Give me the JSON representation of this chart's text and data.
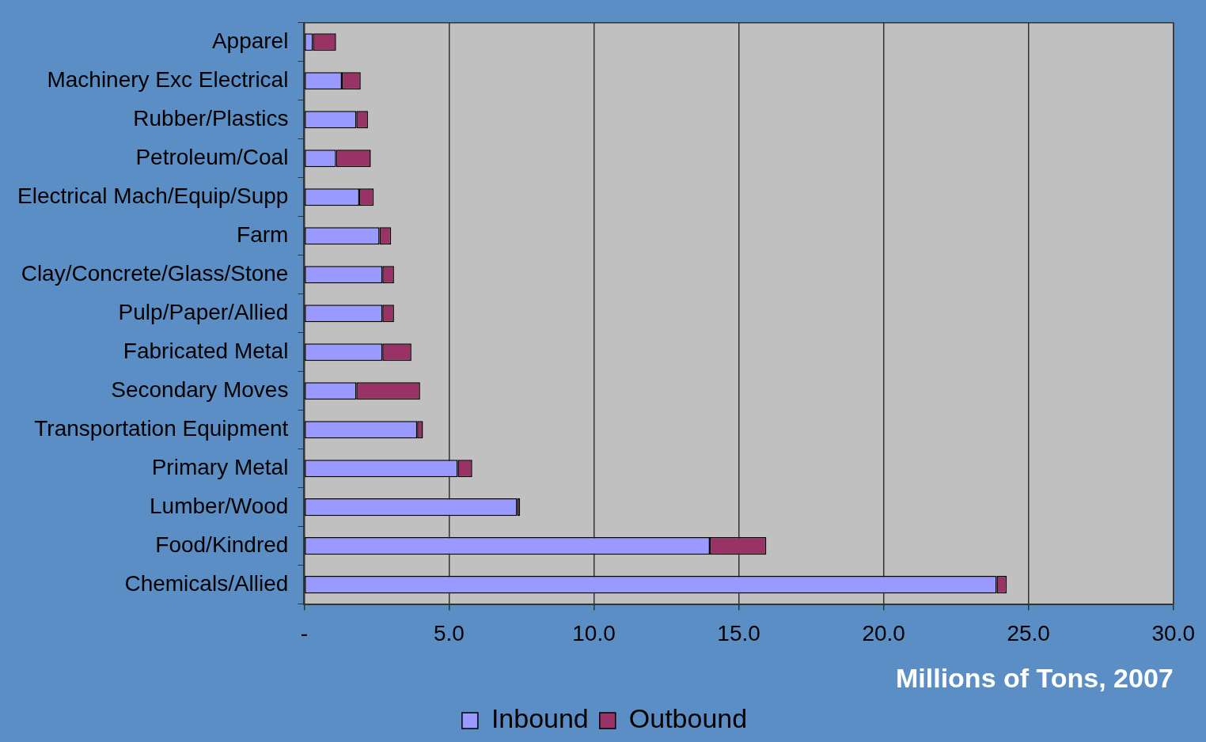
{
  "chart_data": {
    "type": "bar",
    "orientation": "horizontal",
    "stacked": true,
    "categories": [
      "Apparel",
      "Machinery Exc Electrical",
      "Rubber/Plastics",
      "Petroleum/Coal",
      "Electrical Mach/Equip/Supp",
      "Farm",
      "Clay/Concrete/Glass/Stone",
      "Pulp/Paper/Allied",
      "Fabricated Metal",
      "Secondary Moves",
      "Transportation Equipment",
      "Primary Metal",
      "Lumber/Wood",
      "Food/Kindred",
      "Chemicals/Allied"
    ],
    "series": [
      {
        "name": "Inbound",
        "color": "#9999ff",
        "values": [
          0.3,
          1.3,
          1.8,
          1.1,
          1.9,
          2.6,
          2.7,
          2.7,
          2.7,
          1.8,
          3.9,
          5.3,
          7.35,
          14.0,
          23.9
        ]
      },
      {
        "name": "Outbound",
        "color": "#993366",
        "values": [
          0.8,
          0.65,
          0.4,
          1.2,
          0.5,
          0.4,
          0.4,
          0.4,
          1.0,
          2.2,
          0.2,
          0.5,
          0.1,
          1.95,
          0.35
        ]
      }
    ],
    "xlabel": "Millions of Tons, 2007",
    "xlim": [
      0,
      30
    ],
    "xticks": [
      {
        "value": 0,
        "label": "-"
      },
      {
        "value": 5,
        "label": "5.0"
      },
      {
        "value": 10,
        "label": "10.0"
      },
      {
        "value": 15,
        "label": "15.0"
      },
      {
        "value": 20,
        "label": "20.0"
      },
      {
        "value": 25,
        "label": "25.0"
      },
      {
        "value": 30,
        "label": "30.0"
      }
    ],
    "grid": "x",
    "legend": "bottom"
  }
}
